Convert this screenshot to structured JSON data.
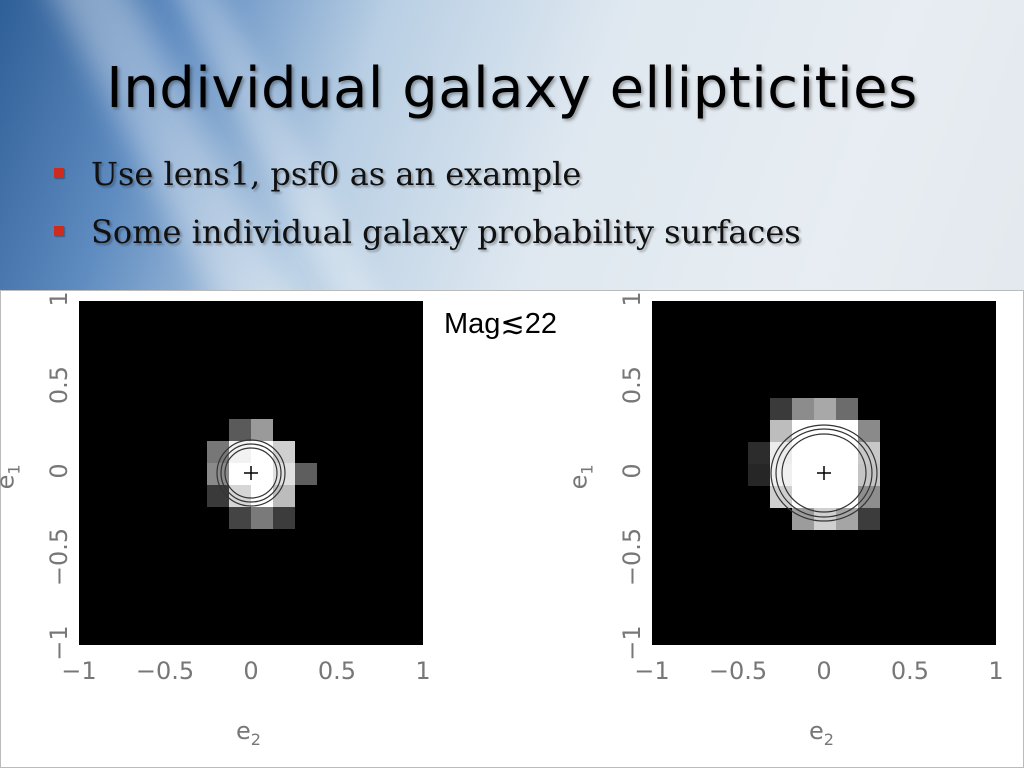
{
  "slide": {
    "title": "Individual galaxy ellipticities",
    "bullets": [
      {
        "text": "Use lens1, psf0 as an example"
      },
      {
        "text": "Some individual galaxy probability surfaces"
      }
    ],
    "bullet_color": "#cc2b1e"
  },
  "figure": {
    "annotation": "Mag≲22",
    "panels": [
      {
        "xlabel": "e",
        "xlabel_sub": "2",
        "ylabel": "e",
        "ylabel_sub": "1",
        "xticks": [
          "−1",
          "−0.5",
          "0",
          "0.5",
          "1"
        ],
        "yticks": [
          "1",
          "0.5",
          "0",
          "−0.5",
          "−1"
        ],
        "marker": "+"
      },
      {
        "xlabel": "e",
        "xlabel_sub": "2",
        "ylabel": "e",
        "ylabel_sub": "1",
        "xticks": [
          "−1",
          "−0.5",
          "0",
          "0.5",
          "1"
        ],
        "yticks": [
          "1",
          "0.5",
          "0",
          "−0.5",
          "−1"
        ],
        "marker": "+"
      }
    ]
  }
}
